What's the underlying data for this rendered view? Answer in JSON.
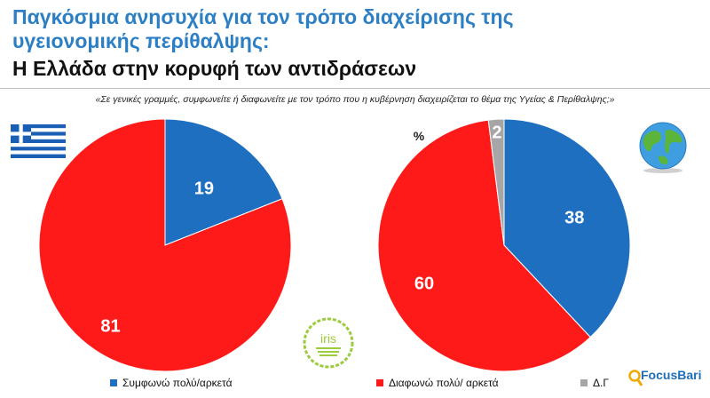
{
  "header": {
    "title_line1": "Παγκόσμια ανησυχία για τον τρόπο διαχείρισης της",
    "title_line2": "υγειονομικής περίθαλψης:",
    "subtitle": "Η Ελλάδα στην κορυφή των αντιδράσεων",
    "question": "«Σε γενικές γραμμές, συμφωνείτε ή διαφωνείτε με τον τρόπο που η κυβέρνηση διαχειρίζεται το θέμα της Υγείας & Περίθαλψης;»"
  },
  "chart_data": [
    {
      "type": "pie",
      "name": "Greece",
      "categories": [
        "Συμφωνώ πολύ/αρκετά",
        "Διαφωνώ πολύ/ αρκετά"
      ],
      "values": [
        19,
        81
      ],
      "colors": [
        "#1f6fc0",
        "#ff1a1a"
      ],
      "unit": "%"
    },
    {
      "type": "pie",
      "name": "Global",
      "categories": [
        "Συμφωνώ πολύ/αρκετά",
        "Διαφωνώ πολύ/ αρκετά",
        "Δ.Γ"
      ],
      "values": [
        38,
        60,
        2
      ],
      "colors": [
        "#1f6fc0",
        "#ff1a1a",
        "#a6a6a6"
      ],
      "unit": "%",
      "unit_label": "%"
    }
  ],
  "legend": {
    "items": [
      {
        "label": "Συμφωνώ πολύ/αρκετά",
        "color": "#1f6fc0"
      },
      {
        "label": "Διαφωνώ πολύ/ αρκετά",
        "color": "#ff1a1a"
      },
      {
        "label": "Δ.Γ",
        "color": "#a6a6a6"
      }
    ]
  },
  "icons": {
    "flag": "greek-flag-icon",
    "globe": "globe-icon",
    "iris": "iris-logo-icon",
    "focusbari": "focusbari-logo-icon"
  },
  "brand": {
    "logo_text": "FocusBari",
    "iris_text": "iris",
    "title_color": "#2c7fc4"
  }
}
